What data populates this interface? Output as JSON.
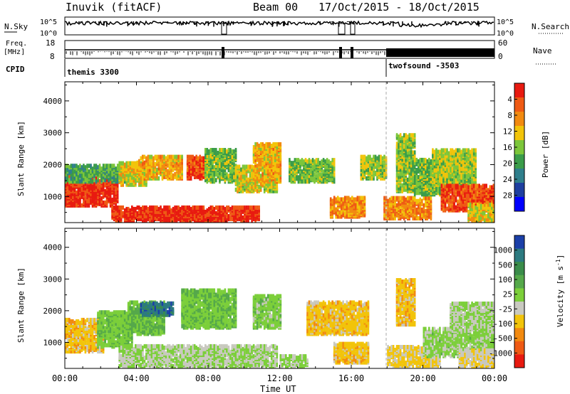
{
  "header": {
    "station": "Inuvik (fitACF)",
    "beam": "Beam 00",
    "dates": "17/Oct/2015 - 18/Oct/2015"
  },
  "noise_panel": {
    "left_label": "N.Sky",
    "left_ticks": [
      "10^5",
      "10^0"
    ],
    "right_label": "N.Search",
    "right_ticks": [
      "10^5",
      "10^0"
    ]
  },
  "freq_panel": {
    "left_label_1": "Freq.",
    "left_label_2": "[MHz]",
    "left_ticks": [
      "18",
      "8"
    ],
    "right_label": "Nave",
    "right_ticks": [
      "60",
      "0"
    ]
  },
  "cpid_panel": {
    "label": "CPID",
    "modes": [
      {
        "name": "themis 3300",
        "start_hour": 0
      },
      {
        "name": "twofsound -3503",
        "start_hour": 18.0
      }
    ]
  },
  "x_axis": {
    "label": "Time UT",
    "tick_labels": [
      "00:00",
      "04:00",
      "08:00",
      "12:00",
      "16:00",
      "20:00",
      "00:00"
    ]
  },
  "chart_data": [
    {
      "type": "heatmap",
      "title": "",
      "xlabel": "",
      "ylabel": "Slant Range [km]",
      "x_range_hours": [
        0,
        24
      ],
      "ylim": [
        180,
        4600
      ],
      "y_ticks": [
        "1000",
        "2000",
        "3000",
        "4000"
      ],
      "colorbar": {
        "label": "Power [dB]",
        "ticks": [
          "4",
          "8",
          "12",
          "16",
          "20",
          "24",
          "28"
        ],
        "range": [
          0,
          30
        ],
        "colors": [
          "#0000ff",
          "#1e3fa0",
          "#2f7f8c",
          "#3a9c4a",
          "#7cc63a",
          "#f2c40a",
          "#f28a10",
          "#ef5a14",
          "#e81a10"
        ]
      },
      "regions": [
        {
          "t0": 0.0,
          "t1": 3.0,
          "r0": 650,
          "r1": 1650,
          "value": 28
        },
        {
          "t0": 0.0,
          "t1": 3.5,
          "r0": 1400,
          "r1": 1900,
          "value": 12
        },
        {
          "t0": 2.6,
          "t1": 10.8,
          "r0": 180,
          "r1": 620,
          "value": 28
        },
        {
          "t0": 3.0,
          "t1": 4.5,
          "r0": 1300,
          "r1": 2000,
          "value": 18
        },
        {
          "t0": 4.0,
          "t1": 6.5,
          "r0": 1500,
          "r1": 2200,
          "value": 20
        },
        {
          "t0": 6.8,
          "t1": 7.8,
          "r0": 1500,
          "r1": 2200,
          "value": 26
        },
        {
          "t0": 7.8,
          "t1": 9.5,
          "r0": 1400,
          "r1": 2400,
          "value": 14
        },
        {
          "t0": 9.5,
          "t1": 11.8,
          "r0": 1100,
          "r1": 1900,
          "value": 17
        },
        {
          "t0": 10.5,
          "t1": 12.0,
          "r0": 1400,
          "r1": 2600,
          "value": 20
        },
        {
          "t0": 12.5,
          "t1": 15.0,
          "r0": 1400,
          "r1": 2100,
          "value": 14
        },
        {
          "t0": 14.8,
          "t1": 16.8,
          "r0": 300,
          "r1": 900,
          "value": 22
        },
        {
          "t0": 16.5,
          "t1": 18.0,
          "r0": 1500,
          "r1": 2200,
          "value": 16
        },
        {
          "t0": 17.8,
          "t1": 20.5,
          "r0": 250,
          "r1": 900,
          "value": 22
        },
        {
          "t0": 18.5,
          "t1": 19.6,
          "r0": 1100,
          "r1": 2900,
          "value": 15
        },
        {
          "t0": 19.5,
          "t1": 21.5,
          "r0": 1000,
          "r1": 2100,
          "value": 14
        },
        {
          "t0": 20.5,
          "t1": 23.0,
          "r0": 1300,
          "r1": 2400,
          "value": 16
        },
        {
          "t0": 21.0,
          "t1": 24.0,
          "r0": 500,
          "r1": 1300,
          "value": 26
        },
        {
          "t0": 22.5,
          "t1": 24.0,
          "r0": 180,
          "r1": 700,
          "value": 18
        }
      ]
    },
    {
      "type": "heatmap",
      "title": "",
      "xlabel": "Time UT",
      "ylabel": "Slant Range [km]",
      "x_range_hours": [
        0,
        24
      ],
      "ylim": [
        180,
        4600
      ],
      "y_ticks": [
        "1000",
        "2000",
        "3000",
        "4000"
      ],
      "colorbar": {
        "label": "Velocity [m s-1]",
        "ticks": [
          "1000",
          "500",
          "100",
          "25",
          "-25",
          "-100",
          "-500",
          "-1000"
        ],
        "range": [
          -1000,
          1000
        ],
        "colors": [
          "#1b3fa8",
          "#2c7a80",
          "#3a8c4a",
          "#55a84a",
          "#7ccf3a",
          "#c9c9c0",
          "#f2c40a",
          "#f28a10",
          "#ef5a14",
          "#e81a10"
        ]
      },
      "regions": [
        {
          "t0": 0.0,
          "t1": 2.2,
          "r0": 650,
          "r1": 1650,
          "value": -300
        },
        {
          "t0": 1.8,
          "t1": 3.8,
          "r0": 800,
          "r1": 1900,
          "value": 150
        },
        {
          "t0": 3.5,
          "t1": 5.5,
          "r0": 1200,
          "r1": 2200,
          "value": 200
        },
        {
          "t0": 4.2,
          "t1": 6.0,
          "r0": 1800,
          "r1": 2200,
          "value": 700
        },
        {
          "t0": 3.0,
          "t1": 11.8,
          "r0": 180,
          "r1": 820,
          "value": 0
        },
        {
          "t0": 6.5,
          "t1": 9.5,
          "r0": 1400,
          "r1": 2600,
          "value": 150
        },
        {
          "t0": 10.5,
          "t1": 12.0,
          "r0": 1400,
          "r1": 2400,
          "value": 100
        },
        {
          "t0": 12.0,
          "t1": 13.5,
          "r0": 180,
          "r1": 500,
          "value": 50
        },
        {
          "t0": 13.5,
          "t1": 17.0,
          "r0": 1200,
          "r1": 2200,
          "value": -300
        },
        {
          "t0": 15.0,
          "t1": 17.0,
          "r0": 300,
          "r1": 900,
          "value": -300
        },
        {
          "t0": 18.0,
          "t1": 21.0,
          "r0": 200,
          "r1": 800,
          "value": -250
        },
        {
          "t0": 18.5,
          "t1": 19.6,
          "r0": 1500,
          "r1": 2900,
          "value": -300
        },
        {
          "t0": 20.0,
          "t1": 24.0,
          "r0": 500,
          "r1": 1400,
          "value": 60
        },
        {
          "t0": 21.5,
          "t1": 24.0,
          "r0": 1300,
          "r1": 2200,
          "value": 0
        },
        {
          "t0": 22.0,
          "t1": 24.0,
          "r0": 180,
          "r1": 700,
          "value": -150
        }
      ]
    }
  ]
}
